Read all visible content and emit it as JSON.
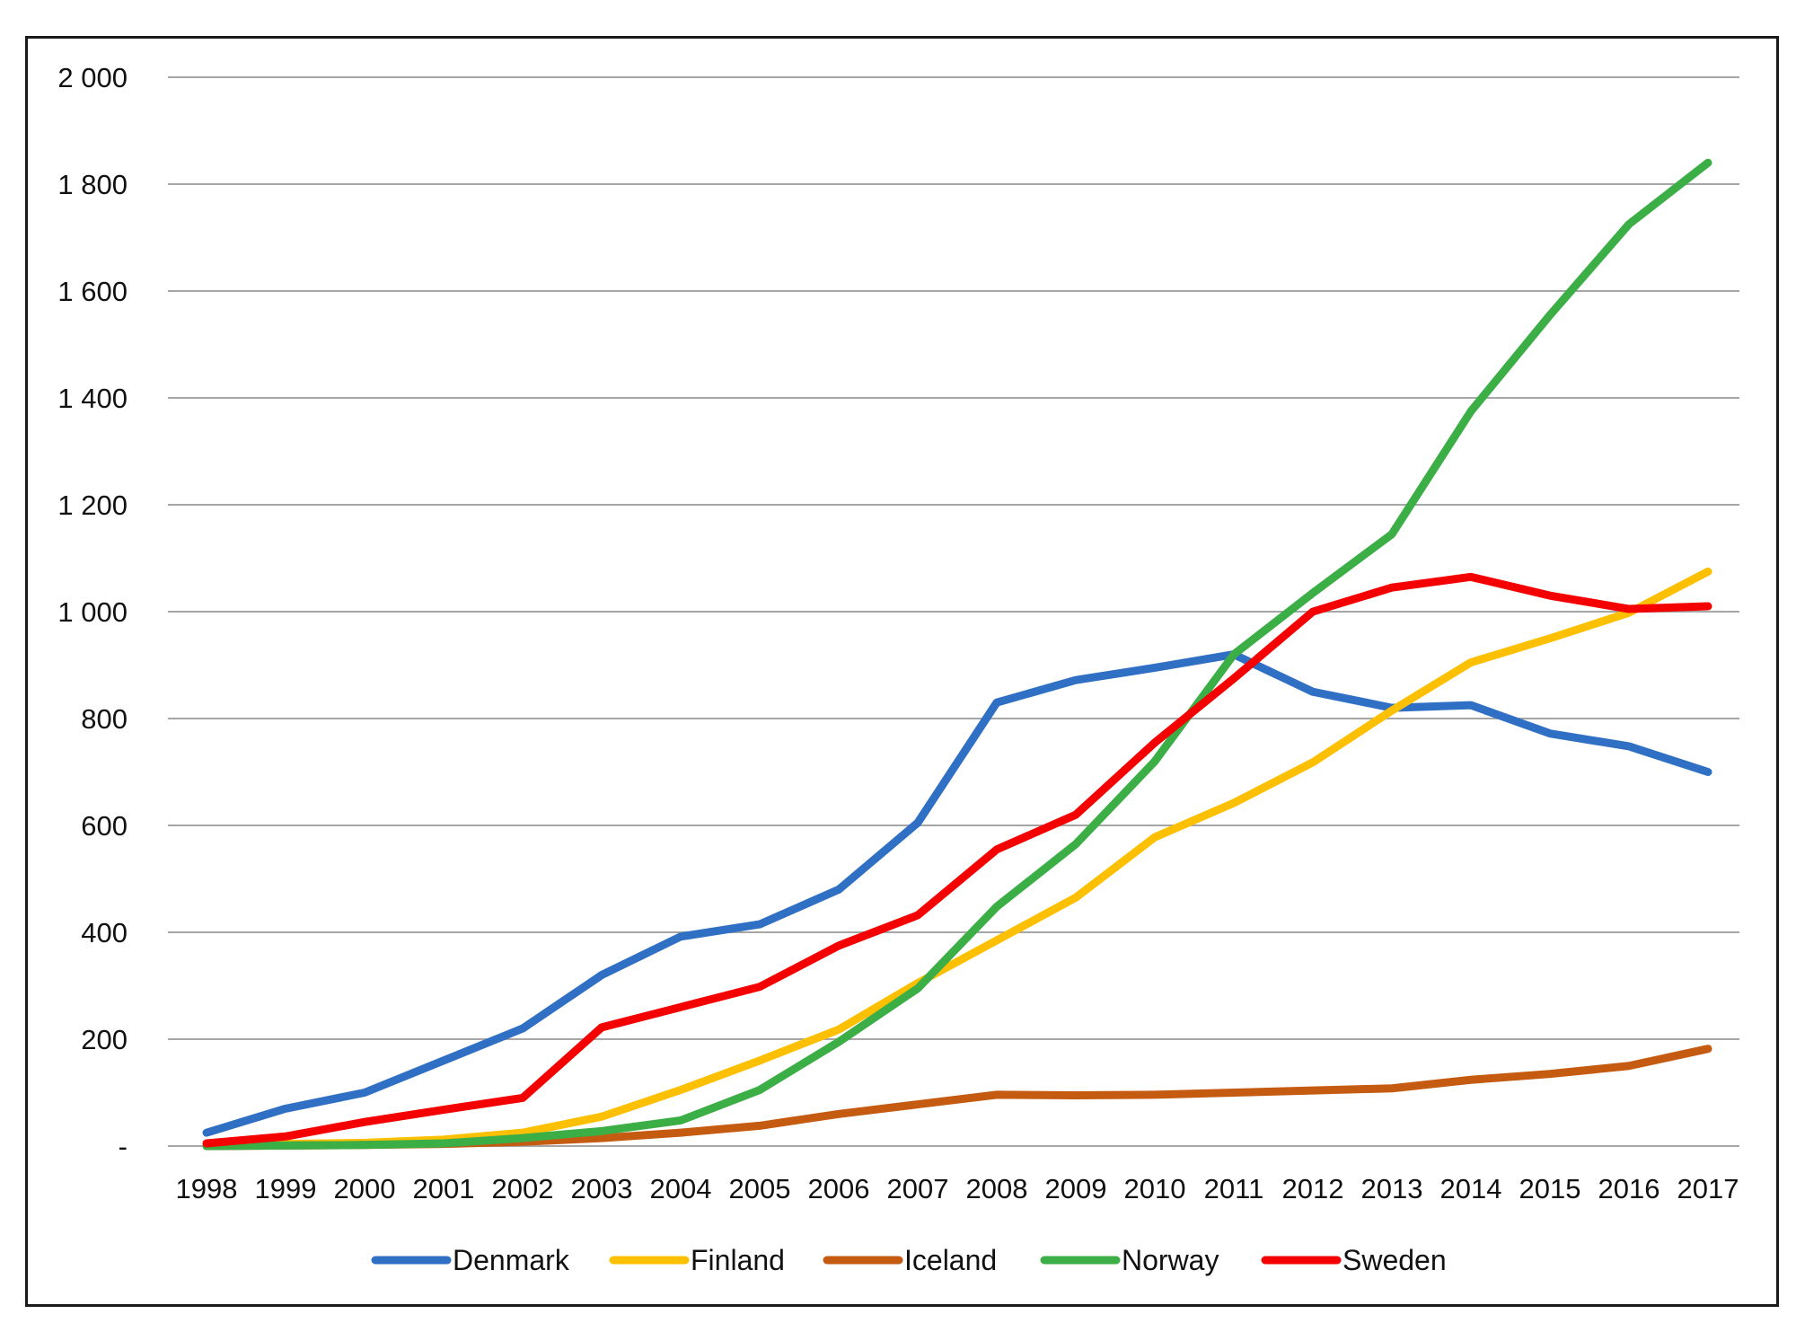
{
  "chart_data": {
    "type": "line",
    "x": [
      "1998",
      "1999",
      "2000",
      "2001",
      "2002",
      "2003",
      "2004",
      "2005",
      "2006",
      "2007",
      "2008",
      "2009",
      "2010",
      "2011",
      "2012",
      "2013",
      "2014",
      "2015",
      "2016",
      "2017"
    ],
    "ylim": [
      0,
      2000
    ],
    "yticks": [
      0,
      200,
      400,
      600,
      800,
      1000,
      1200,
      1400,
      1600,
      1800,
      2000
    ],
    "ytick_labels": [
      "-",
      "200",
      "400",
      "600",
      "800",
      "1 000",
      "1 200",
      "1 400",
      "1 600",
      "1 800",
      "2 000"
    ],
    "grid": true,
    "legend_position": "bottom",
    "series": [
      {
        "name": "Denmark",
        "color": "#2f6fc4",
        "values": [
          25,
          70,
          100,
          160,
          220,
          320,
          392,
          415,
          480,
          605,
          830,
          872,
          895,
          920,
          850,
          820,
          825,
          772,
          748,
          700
        ]
      },
      {
        "name": "Finland",
        "color": "#fdc000",
        "values": [
          2,
          4,
          6,
          12,
          25,
          55,
          105,
          160,
          218,
          305,
          385,
          465,
          578,
          642,
          718,
          815,
          905,
          950,
          998,
          1075
        ]
      },
      {
        "name": "Iceland",
        "color": "#c55a11",
        "values": [
          0,
          1,
          2,
          4,
          8,
          15,
          25,
          38,
          60,
          78,
          96,
          95,
          96,
          100,
          104,
          108,
          124,
          135,
          150,
          182
        ]
      },
      {
        "name": "Norway",
        "color": "#3cae46",
        "values": [
          0,
          1,
          2,
          5,
          15,
          28,
          48,
          105,
          195,
          295,
          448,
          565,
          720,
          920,
          1035,
          1145,
          1375,
          1555,
          1725,
          1840
        ]
      },
      {
        "name": "Sweden",
        "color": "#f40000",
        "values": [
          5,
          18,
          45,
          68,
          90,
          222,
          260,
          298,
          375,
          432,
          555,
          620,
          755,
          875,
          1000,
          1045,
          1065,
          1030,
          1005,
          1010
        ]
      }
    ]
  }
}
